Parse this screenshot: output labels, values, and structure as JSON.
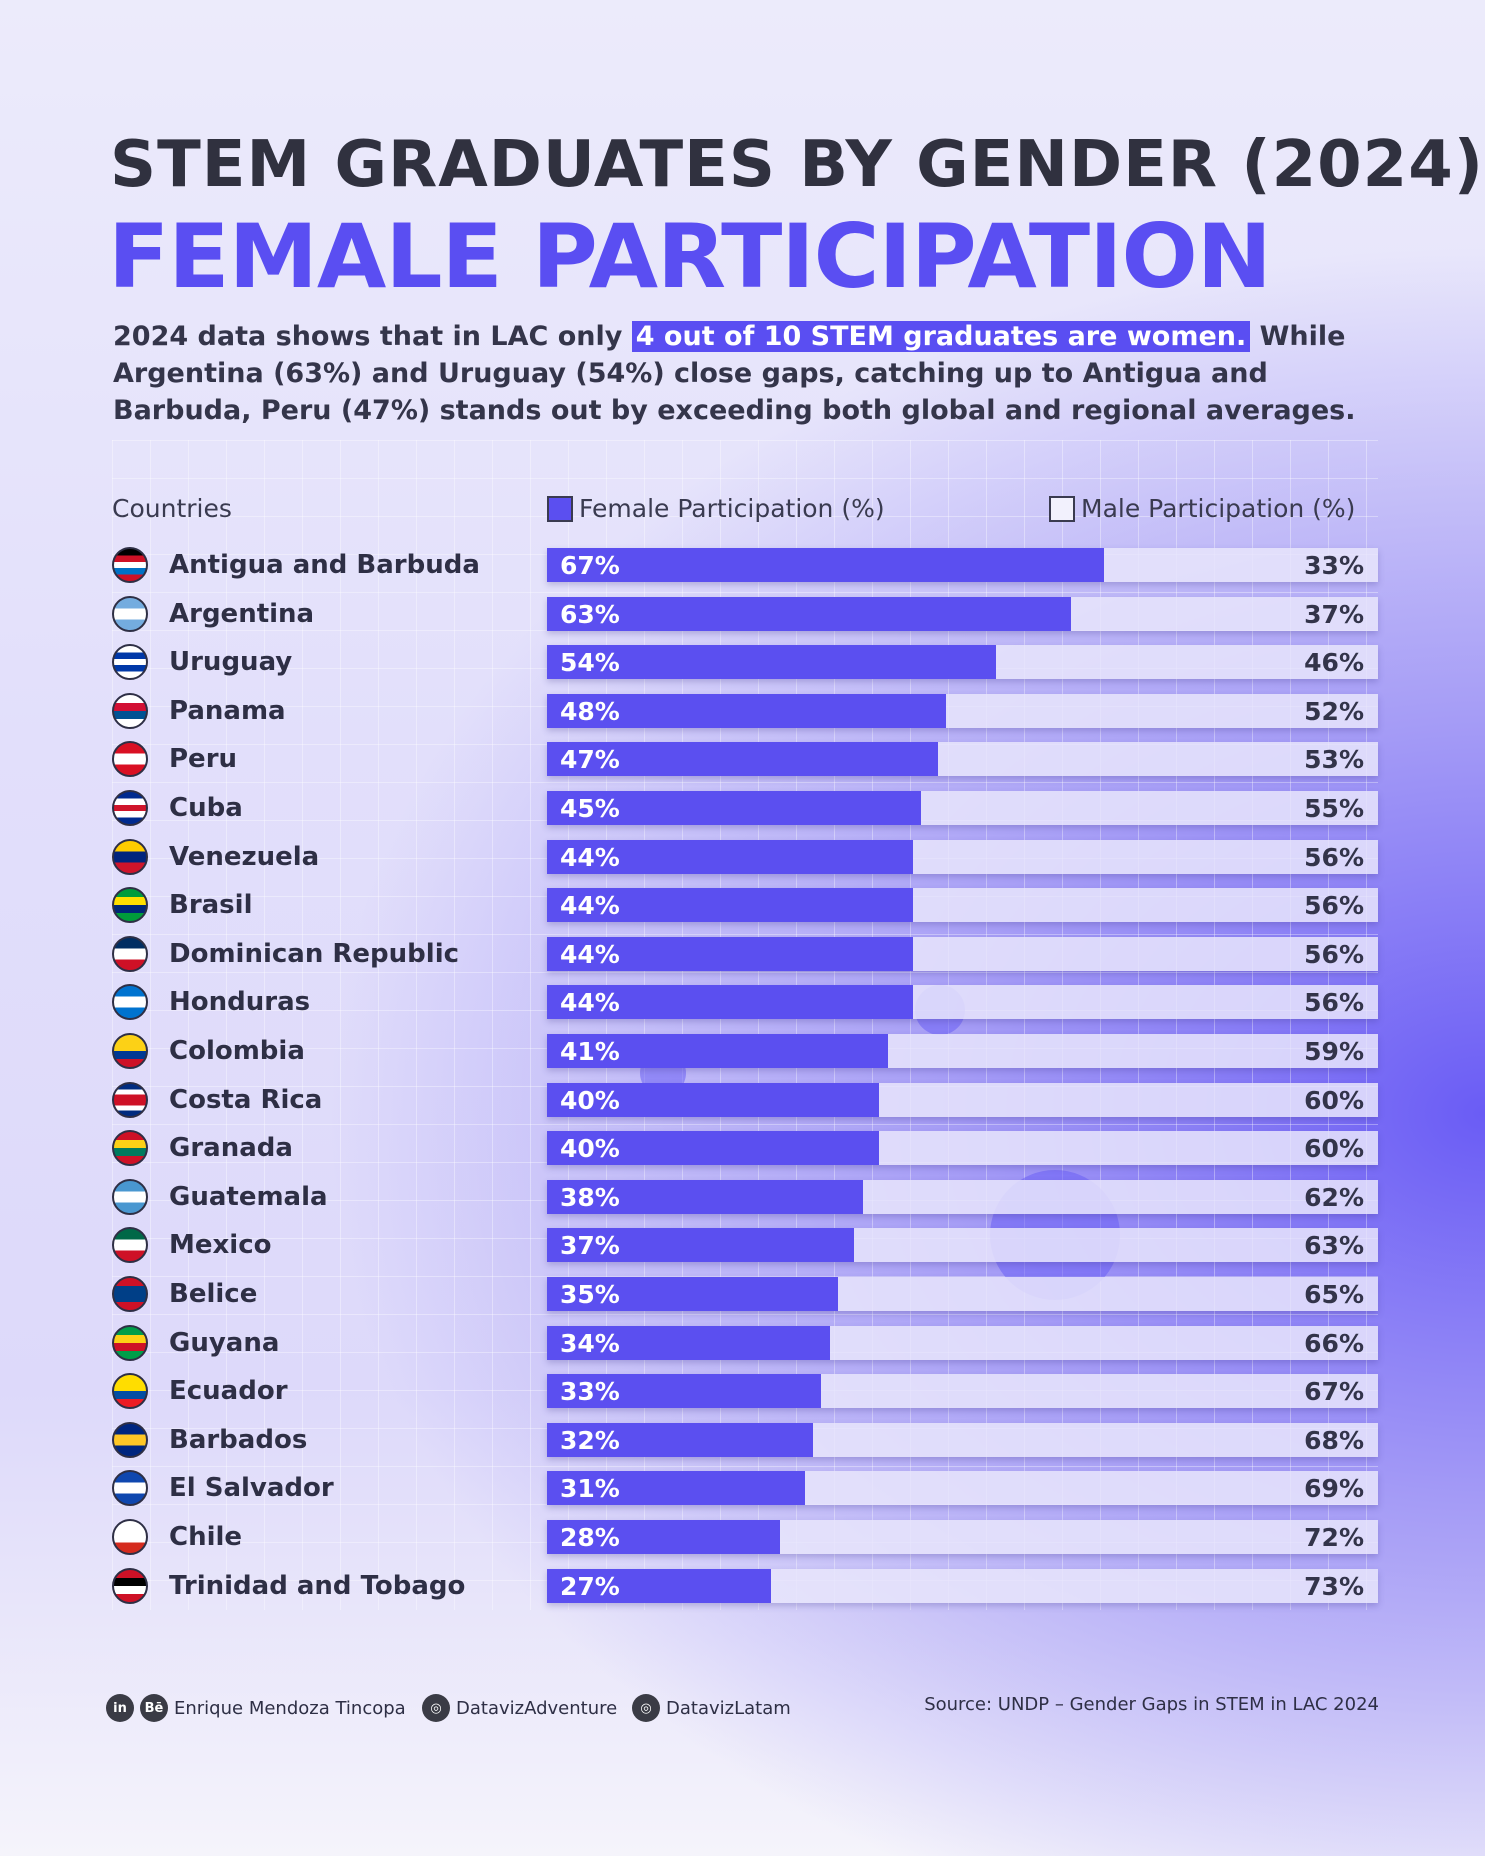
{
  "header": {
    "title": "STEM GRADUATES BY GENDER (2024)",
    "headline": "FEMALE PARTICIPATION",
    "sub_before": "2024 data shows that in LAC only ",
    "sub_highlight": "4 out of 10 STEM graduates are women.",
    "sub_after": " While Argentina (63%) and Uruguay (54%) close gaps, catching up to Antigua and Barbuda, Peru (47%) stands out by exceeding both global and regional averages."
  },
  "colors": {
    "female": "#5b4ff0",
    "male": "#e8e5fc",
    "title": "#30313f",
    "accent": "#5a4ef2"
  },
  "chart_data": {
    "type": "bar",
    "stacked": true,
    "orientation": "horizontal",
    "column_header": "Countries",
    "categories": [
      "Antigua and Barbuda",
      "Argentina",
      "Uruguay",
      "Panama",
      "Peru",
      "Cuba",
      "Venezuela",
      "Brasil",
      "Dominican Republic",
      "Honduras",
      "Colombia",
      "Costa Rica",
      "Granada",
      "Guatemala",
      "Mexico",
      "Belice",
      "Guyana",
      "Ecuador",
      "Barbados",
      "El Salvador",
      "Chile",
      "Trinidad and Tobago"
    ],
    "series": [
      {
        "name": "Female Participation (%)",
        "values": [
          67,
          63,
          54,
          48,
          47,
          45,
          44,
          44,
          44,
          44,
          41,
          40,
          40,
          38,
          37,
          35,
          34,
          33,
          32,
          31,
          28,
          27
        ]
      },
      {
        "name": "Male Participation (%)",
        "values": [
          33,
          37,
          46,
          52,
          53,
          55,
          56,
          56,
          56,
          56,
          59,
          60,
          60,
          62,
          63,
          65,
          66,
          67,
          68,
          69,
          72,
          73
        ]
      }
    ],
    "xlim": [
      0,
      100
    ],
    "legend": "top"
  },
  "flags": [
    [
      "#000",
      "#ce1126",
      "#fff",
      "#0072c6",
      "#ce1126"
    ],
    [
      "#74acdf",
      "#fff",
      "#74acdf"
    ],
    [
      "#fff",
      "#0038a8",
      "#fff",
      "#0038a8",
      "#fff"
    ],
    [
      "#fff",
      "#d21034",
      "#005293",
      "#fff"
    ],
    [
      "#d91023",
      "#fff",
      "#d91023"
    ],
    [
      "#002a8f",
      "#fff",
      "#cf142b",
      "#fff",
      "#002a8f"
    ],
    [
      "#ffcc00",
      "#00247d",
      "#cf142b"
    ],
    [
      "#009c3b",
      "#ffdf00",
      "#002776",
      "#009c3b"
    ],
    [
      "#002d62",
      "#fff",
      "#ce1126"
    ],
    [
      "#0073cf",
      "#fff",
      "#0073cf"
    ],
    [
      "#fcd116",
      "#fcd116",
      "#003893",
      "#ce1126"
    ],
    [
      "#002b7f",
      "#fff",
      "#ce1126",
      "#ce1126",
      "#fff",
      "#002b7f"
    ],
    [
      "#ce1126",
      "#fcd116",
      "#007a5e",
      "#ce1126"
    ],
    [
      "#4997d0",
      "#fff",
      "#4997d0"
    ],
    [
      "#006847",
      "#fff",
      "#ce1126"
    ],
    [
      "#ce1126",
      "#003f87",
      "#003f87",
      "#ce1126"
    ],
    [
      "#009e49",
      "#fcd116",
      "#ce1126",
      "#009e49"
    ],
    [
      "#ffdd00",
      "#ffdd00",
      "#034ea2",
      "#ed1c24"
    ],
    [
      "#00267f",
      "#ffc726",
      "#00267f"
    ],
    [
      "#0f47af",
      "#fff",
      "#0f47af"
    ],
    [
      "#fff",
      "#fff",
      "#d52b1e"
    ],
    [
      "#ce1126",
      "#000",
      "#fff",
      "#ce1126"
    ]
  ],
  "footer": {
    "author": "Enrique Mendoza Tincopa",
    "ig1": "DatavizAdventure",
    "ig2": "DatavizLatam",
    "source": "Source: UNDP – Gender Gaps in STEM in LAC 2024",
    "icons": [
      "linkedin-icon",
      "behance-icon",
      "instagram-icon",
      "instagram-icon"
    ],
    "li": "in",
    "be": "Bē",
    "ig": "◎"
  }
}
